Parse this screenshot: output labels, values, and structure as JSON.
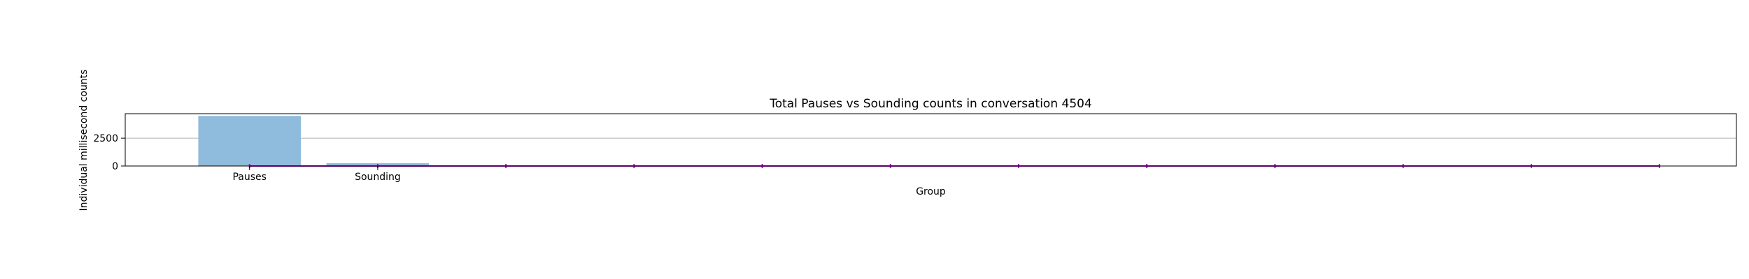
{
  "chart_data": {
    "type": "bar",
    "title": "Total Pauses vs Sounding counts in conversation 4504",
    "xlabel": "Group",
    "ylabel": "Individual millisecond counts",
    "categories": [
      "Pauses",
      "Sounding"
    ],
    "values": [
      4500,
      250
    ],
    "ylim": [
      0,
      4700
    ],
    "yticks": [
      0,
      2500
    ],
    "grid": "horizontal",
    "bar_color": "#8fbbdc",
    "overlay_line": {
      "color": "#b000c8",
      "x": [
        0,
        1,
        2,
        3,
        4,
        5,
        6,
        7,
        8,
        9,
        10,
        11
      ],
      "y": [
        0,
        0,
        0,
        0,
        0,
        0,
        0,
        0,
        0,
        0,
        0,
        0
      ]
    },
    "xlim": [
      -0.97,
      11.6
    ]
  }
}
